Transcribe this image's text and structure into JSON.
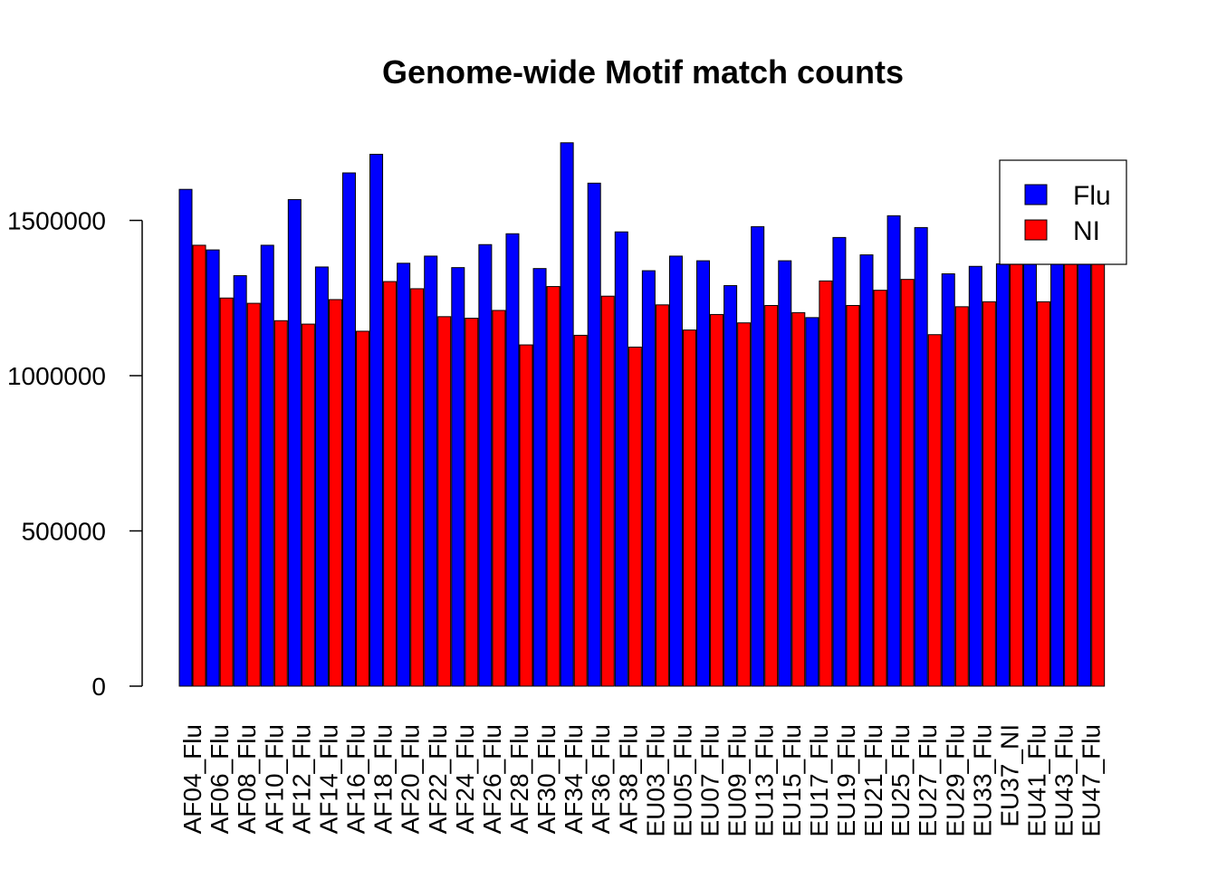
{
  "chart_data": {
    "type": "bar",
    "title": "Genome-wide Motif match counts",
    "xlabel": "",
    "ylabel": "",
    "ylim": [
      0,
      1750000
    ],
    "yticks": [
      0,
      500000,
      1000000,
      1500000
    ],
    "ytick_labels": [
      "0",
      "500000",
      "1000000",
      "1500000"
    ],
    "grid": false,
    "legend": {
      "placement": "top-right"
    },
    "categories": [
      "AF04_Flu",
      "AF06_Flu",
      "AF08_Flu",
      "AF10_Flu",
      "AF12_Flu",
      "AF14_Flu",
      "AF16_Flu",
      "AF18_Flu",
      "AF20_Flu",
      "AF22_Flu",
      "AF24_Flu",
      "AF26_Flu",
      "AF28_Flu",
      "AF30_Flu",
      "AF34_Flu",
      "AF36_Flu",
      "AF38_Flu",
      "EU03_Flu",
      "EU05_Flu",
      "EU07_Flu",
      "EU09_Flu",
      "EU13_Flu",
      "EU15_Flu",
      "EU17_Flu",
      "EU19_Flu",
      "EU21_Flu",
      "EU25_Flu",
      "EU27_Flu",
      "EU29_Flu",
      "EU33_Flu",
      "EU37_NI",
      "EU41_Flu",
      "EU43_Flu",
      "EU47_Flu"
    ],
    "bars": [
      {
        "name": "Flu",
        "value": 1600000
      },
      {
        "name": "NI",
        "value": 1420000
      },
      {
        "name": "Flu",
        "value": 1405000
      },
      {
        "name": "NI",
        "value": 1250000
      },
      {
        "name": "Flu",
        "value": 1322000
      },
      {
        "name": "NI",
        "value": 1233000
      },
      {
        "name": "Flu",
        "value": 1420000
      },
      {
        "name": "NI",
        "value": 1177000
      },
      {
        "name": "Flu",
        "value": 1567000
      },
      {
        "name": "NI",
        "value": 1166000
      },
      {
        "name": "Flu",
        "value": 1350000
      },
      {
        "name": "NI",
        "value": 1245000
      },
      {
        "name": "Flu",
        "value": 1653000
      },
      {
        "name": "NI",
        "value": 1143000
      },
      {
        "name": "Flu",
        "value": 1713000
      },
      {
        "name": "NI",
        "value": 1303000
      },
      {
        "name": "Flu",
        "value": 1362000
      },
      {
        "name": "NI",
        "value": 1280000
      },
      {
        "name": "Flu",
        "value": 1385000
      },
      {
        "name": "NI",
        "value": 1190000
      },
      {
        "name": "Flu",
        "value": 1348000
      },
      {
        "name": "NI",
        "value": 1185000
      },
      {
        "name": "Flu",
        "value": 1422000
      },
      {
        "name": "NI",
        "value": 1210000
      },
      {
        "name": "Flu",
        "value": 1457000
      },
      {
        "name": "NI",
        "value": 1099000
      },
      {
        "name": "Flu",
        "value": 1345000
      },
      {
        "name": "NI",
        "value": 1287000
      },
      {
        "name": "Flu",
        "value": 1750000
      },
      {
        "name": "NI",
        "value": 1130000
      },
      {
        "name": "Flu",
        "value": 1620000
      },
      {
        "name": "NI",
        "value": 1256000
      },
      {
        "name": "Flu",
        "value": 1463000
      },
      {
        "name": "NI",
        "value": 1092000
      },
      {
        "name": "Flu",
        "value": 1338000
      },
      {
        "name": "NI",
        "value": 1228000
      },
      {
        "name": "Flu",
        "value": 1385000
      },
      {
        "name": "NI",
        "value": 1147000
      },
      {
        "name": "Flu",
        "value": 1370000
      },
      {
        "name": "NI",
        "value": 1197000
      },
      {
        "name": "Flu",
        "value": 1290000
      },
      {
        "name": "NI",
        "value": 1170000
      },
      {
        "name": "Flu",
        "value": 1480000
      },
      {
        "name": "NI",
        "value": 1226000
      },
      {
        "name": "Flu",
        "value": 1370000
      },
      {
        "name": "NI",
        "value": 1203000
      },
      {
        "name": "Flu",
        "value": 1187000
      },
      {
        "name": "NI",
        "value": 1305000
      },
      {
        "name": "Flu",
        "value": 1445000
      },
      {
        "name": "NI",
        "value": 1226000
      },
      {
        "name": "Flu",
        "value": 1389000
      },
      {
        "name": "NI",
        "value": 1275000
      },
      {
        "name": "Flu",
        "value": 1515000
      },
      {
        "name": "NI",
        "value": 1310000
      },
      {
        "name": "Flu",
        "value": 1477000
      },
      {
        "name": "NI",
        "value": 1132000
      },
      {
        "name": "Flu",
        "value": 1328000
      },
      {
        "name": "NI",
        "value": 1222000
      },
      {
        "name": "Flu",
        "value": 1352000
      },
      {
        "name": "NI",
        "value": 1238000
      },
      {
        "name": "Flu",
        "value": 1360000
      },
      {
        "name": "NI",
        "value": 1360000
      },
      {
        "name": "Flu",
        "value": 1360000
      },
      {
        "name": "NI",
        "value": 1238000
      },
      {
        "name": "Flu",
        "value": 1360000
      },
      {
        "name": "NI",
        "value": 1360000
      },
      {
        "name": "Flu",
        "value": 1360000
      },
      {
        "name": "NI",
        "value": 1360000
      }
    ],
    "series": [
      {
        "name": "Flu",
        "color": "#0000ff"
      },
      {
        "name": "NI",
        "color": "#ff0000"
      }
    ]
  }
}
